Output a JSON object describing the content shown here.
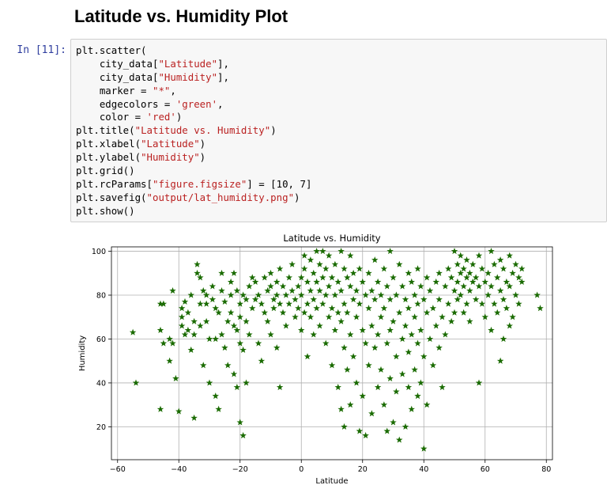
{
  "notebook": {
    "section_heading": "Latitude vs. Humidity Plot",
    "cell_prompt": "In [11]:",
    "code_lines": [
      "plt.scatter(",
      "    city_data[\"Latitude\"],",
      "    city_data[\"Humidity\"],",
      "    marker = \"*\",",
      "    edgecolors = 'green',",
      "    color = 'red')",
      "plt.title(\"Latitude vs. Humidity\")",
      "plt.xlabel(\"Latitude\")",
      "plt.ylabel(\"Humidity\")",
      "plt.grid()",
      "plt.rcParams[\"figure.figsize\"] = [10, 7]",
      "plt.savefig(\"output/lat_humidity.png\")",
      "plt.show()"
    ]
  },
  "chart_data": {
    "type": "scatter",
    "title": "Latitude vs. Humidity",
    "xlabel": "Latitude",
    "ylabel": "Humidity",
    "xlim": [
      -62,
      82
    ],
    "ylim": [
      5,
      102
    ],
    "xticks": [
      -60,
      -40,
      -20,
      0,
      20,
      40,
      60,
      80
    ],
    "yticks": [
      20,
      40,
      60,
      80,
      100
    ],
    "grid": true,
    "marker": "star",
    "marker_color": "#1a6b00",
    "points": [
      [
        -55,
        63
      ],
      [
        -54,
        40
      ],
      [
        -46,
        76
      ],
      [
        -45,
        76
      ],
      [
        -46,
        64
      ],
      [
        -46,
        28
      ],
      [
        -45,
        58
      ],
      [
        -43,
        60
      ],
      [
        -43,
        50
      ],
      [
        -42,
        58
      ],
      [
        -42,
        82
      ],
      [
        -41,
        42
      ],
      [
        -40,
        27
      ],
      [
        -39,
        70
      ],
      [
        -39,
        74
      ],
      [
        -39,
        66
      ],
      [
        -38,
        62
      ],
      [
        -38,
        77
      ],
      [
        -37,
        72
      ],
      [
        -37,
        64
      ],
      [
        -36,
        80
      ],
      [
        -36,
        55
      ],
      [
        -35,
        68
      ],
      [
        -35,
        62
      ],
      [
        -35,
        24
      ],
      [
        -34,
        94
      ],
      [
        -34,
        90
      ],
      [
        -33,
        88
      ],
      [
        -33,
        76
      ],
      [
        -33,
        66
      ],
      [
        -32,
        82
      ],
      [
        -32,
        48
      ],
      [
        -31,
        80
      ],
      [
        -31,
        76
      ],
      [
        -31,
        68
      ],
      [
        -30,
        60
      ],
      [
        -30,
        40
      ],
      [
        -29,
        84
      ],
      [
        -29,
        78
      ],
      [
        -28,
        74
      ],
      [
        -28,
        60
      ],
      [
        -28,
        34
      ],
      [
        -27,
        72
      ],
      [
        -27,
        28
      ],
      [
        -26,
        90
      ],
      [
        -26,
        82
      ],
      [
        -26,
        62
      ],
      [
        -25,
        77
      ],
      [
        -25,
        56
      ],
      [
        -24,
        68
      ],
      [
        -24,
        48
      ],
      [
        -23,
        86
      ],
      [
        -23,
        80
      ],
      [
        -23,
        72
      ],
      [
        -22,
        90
      ],
      [
        -22,
        66
      ],
      [
        -22,
        44
      ],
      [
        -21,
        82
      ],
      [
        -21,
        64
      ],
      [
        -21,
        38
      ],
      [
        -20,
        76
      ],
      [
        -20,
        70
      ],
      [
        -20,
        58
      ],
      [
        -20,
        22
      ],
      [
        -19,
        80
      ],
      [
        -19,
        55
      ],
      [
        -19,
        16
      ],
      [
        -18,
        78
      ],
      [
        -18,
        68
      ],
      [
        -18,
        40
      ],
      [
        -17,
        84
      ],
      [
        -17,
        62
      ],
      [
        -16,
        88
      ],
      [
        -16,
        74
      ],
      [
        -15,
        86
      ],
      [
        -15,
        78
      ],
      [
        -14,
        80
      ],
      [
        -14,
        58
      ],
      [
        -13,
        76
      ],
      [
        -13,
        50
      ],
      [
        -12,
        88
      ],
      [
        -12,
        72
      ],
      [
        -11,
        82
      ],
      [
        -11,
        68
      ],
      [
        -10,
        90
      ],
      [
        -10,
        84
      ],
      [
        -10,
        62
      ],
      [
        -9,
        78
      ],
      [
        -9,
        74
      ],
      [
        -8,
        86
      ],
      [
        -8,
        80
      ],
      [
        -8,
        56
      ],
      [
        -7,
        92
      ],
      [
        -7,
        76
      ],
      [
        -7,
        38
      ],
      [
        -6,
        84
      ],
      [
        -6,
        72
      ],
      [
        -5,
        80
      ],
      [
        -5,
        66
      ],
      [
        -4,
        88
      ],
      [
        -4,
        76
      ],
      [
        -3,
        94
      ],
      [
        -3,
        82
      ],
      [
        -2,
        78
      ],
      [
        -2,
        70
      ],
      [
        -1,
        84
      ],
      [
        -1,
        74
      ],
      [
        0,
        88
      ],
      [
        0,
        80
      ],
      [
        0,
        64
      ],
      [
        1,
        98
      ],
      [
        1,
        92
      ],
      [
        1,
        72
      ],
      [
        2,
        86
      ],
      [
        2,
        76
      ],
      [
        2,
        52
      ],
      [
        3,
        96
      ],
      [
        3,
        82
      ],
      [
        3,
        70
      ],
      [
        4,
        90
      ],
      [
        4,
        78
      ],
      [
        4,
        62
      ],
      [
        5,
        100
      ],
      [
        5,
        86
      ],
      [
        5,
        74
      ],
      [
        6,
        94
      ],
      [
        6,
        82
      ],
      [
        6,
        66
      ],
      [
        7,
        100
      ],
      [
        7,
        88
      ],
      [
        7,
        76
      ],
      [
        8,
        92
      ],
      [
        8,
        80
      ],
      [
        8,
        58
      ],
      [
        9,
        98
      ],
      [
        9,
        84
      ],
      [
        9,
        70
      ],
      [
        10,
        88
      ],
      [
        10,
        74
      ],
      [
        10,
        48
      ],
      [
        11,
        94
      ],
      [
        11,
        80
      ],
      [
        11,
        64
      ],
      [
        12,
        86
      ],
      [
        12,
        72
      ],
      [
        12,
        38
      ],
      [
        13,
        100
      ],
      [
        13,
        82
      ],
      [
        13,
        68
      ],
      [
        13,
        28
      ],
      [
        14,
        92
      ],
      [
        14,
        76
      ],
      [
        14,
        56
      ],
      [
        14,
        20
      ],
      [
        15,
        88
      ],
      [
        15,
        72
      ],
      [
        15,
        46
      ],
      [
        16,
        98
      ],
      [
        16,
        84
      ],
      [
        16,
        62
      ],
      [
        16,
        30
      ],
      [
        17,
        90
      ],
      [
        17,
        78
      ],
      [
        17,
        52
      ],
      [
        18,
        82
      ],
      [
        18,
        70
      ],
      [
        18,
        40
      ],
      [
        19,
        92
      ],
      [
        19,
        76
      ],
      [
        19,
        18
      ],
      [
        20,
        86
      ],
      [
        20,
        64
      ],
      [
        20,
        34
      ],
      [
        21,
        80
      ],
      [
        21,
        58
      ],
      [
        21,
        16
      ],
      [
        22,
        90
      ],
      [
        22,
        74
      ],
      [
        22,
        48
      ],
      [
        23,
        82
      ],
      [
        23,
        66
      ],
      [
        23,
        26
      ],
      [
        24,
        96
      ],
      [
        24,
        78
      ],
      [
        24,
        56
      ],
      [
        25,
        86
      ],
      [
        25,
        62
      ],
      [
        25,
        38
      ],
      [
        26,
        80
      ],
      [
        26,
        70
      ],
      [
        26,
        46
      ],
      [
        27,
        92
      ],
      [
        27,
        74
      ],
      [
        27,
        30
      ],
      [
        28,
        84
      ],
      [
        28,
        58
      ],
      [
        28,
        18
      ],
      [
        29,
        100
      ],
      [
        29,
        78
      ],
      [
        29,
        64
      ],
      [
        29,
        42
      ],
      [
        30,
        88
      ],
      [
        30,
        68
      ],
      [
        30,
        22
      ],
      [
        31,
        80
      ],
      [
        31,
        52
      ],
      [
        31,
        36
      ],
      [
        32,
        94
      ],
      [
        32,
        72
      ],
      [
        32,
        14
      ],
      [
        33,
        84
      ],
      [
        33,
        60
      ],
      [
        33,
        44
      ],
      [
        34,
        78
      ],
      [
        34,
        66
      ],
      [
        34,
        20
      ],
      [
        35,
        90
      ],
      [
        35,
        74
      ],
      [
        35,
        54
      ],
      [
        35,
        38
      ],
      [
        36,
        86
      ],
      [
        36,
        62
      ],
      [
        36,
        28
      ],
      [
        37,
        80
      ],
      [
        37,
        70
      ],
      [
        37,
        46
      ],
      [
        38,
        92
      ],
      [
        38,
        76
      ],
      [
        38,
        58
      ],
      [
        38,
        34
      ],
      [
        39,
        84
      ],
      [
        39,
        64
      ],
      [
        39,
        40
      ],
      [
        40,
        78
      ],
      [
        40,
        52
      ],
      [
        40,
        10
      ],
      [
        41,
        88
      ],
      [
        41,
        72
      ],
      [
        41,
        30
      ],
      [
        42,
        82
      ],
      [
        42,
        60
      ],
      [
        43,
        74
      ],
      [
        43,
        48
      ],
      [
        44,
        86
      ],
      [
        44,
        66
      ],
      [
        45,
        90
      ],
      [
        45,
        78
      ],
      [
        45,
        56
      ],
      [
        46,
        70
      ],
      [
        46,
        38
      ],
      [
        47,
        84
      ],
      [
        47,
        62
      ],
      [
        48,
        92
      ],
      [
        48,
        76
      ],
      [
        49,
        88
      ],
      [
        49,
        68
      ],
      [
        50,
        100
      ],
      [
        50,
        82
      ],
      [
        50,
        72
      ],
      [
        51,
        94
      ],
      [
        51,
        86
      ],
      [
        51,
        78
      ],
      [
        52,
        98
      ],
      [
        52,
        90
      ],
      [
        52,
        80
      ],
      [
        53,
        92
      ],
      [
        53,
        84
      ],
      [
        53,
        72
      ],
      [
        54,
        96
      ],
      [
        54,
        88
      ],
      [
        54,
        76
      ],
      [
        55,
        90
      ],
      [
        55,
        82
      ],
      [
        55,
        68
      ],
      [
        56,
        94
      ],
      [
        56,
        86
      ],
      [
        57,
        88
      ],
      [
        57,
        78
      ],
      [
        58,
        98
      ],
      [
        58,
        84
      ],
      [
        58,
        40
      ],
      [
        59,
        92
      ],
      [
        59,
        76
      ],
      [
        60,
        86
      ],
      [
        60,
        70
      ],
      [
        61,
        90
      ],
      [
        61,
        80
      ],
      [
        62,
        100
      ],
      [
        62,
        84
      ],
      [
        62,
        64
      ],
      [
        63,
        94
      ],
      [
        63,
        76
      ],
      [
        64,
        88
      ],
      [
        64,
        72
      ],
      [
        65,
        96
      ],
      [
        65,
        82
      ],
      [
        65,
        50
      ],
      [
        66,
        92
      ],
      [
        66,
        78
      ],
      [
        66,
        60
      ],
      [
        67,
        86
      ],
      [
        67,
        74
      ],
      [
        68,
        98
      ],
      [
        68,
        84
      ],
      [
        68,
        66
      ],
      [
        69,
        90
      ],
      [
        69,
        70
      ],
      [
        70,
        94
      ],
      [
        70,
        80
      ],
      [
        71,
        88
      ],
      [
        71,
        76
      ],
      [
        72,
        92
      ],
      [
        72,
        86
      ],
      [
        77,
        80
      ],
      [
        78,
        74
      ]
    ]
  }
}
